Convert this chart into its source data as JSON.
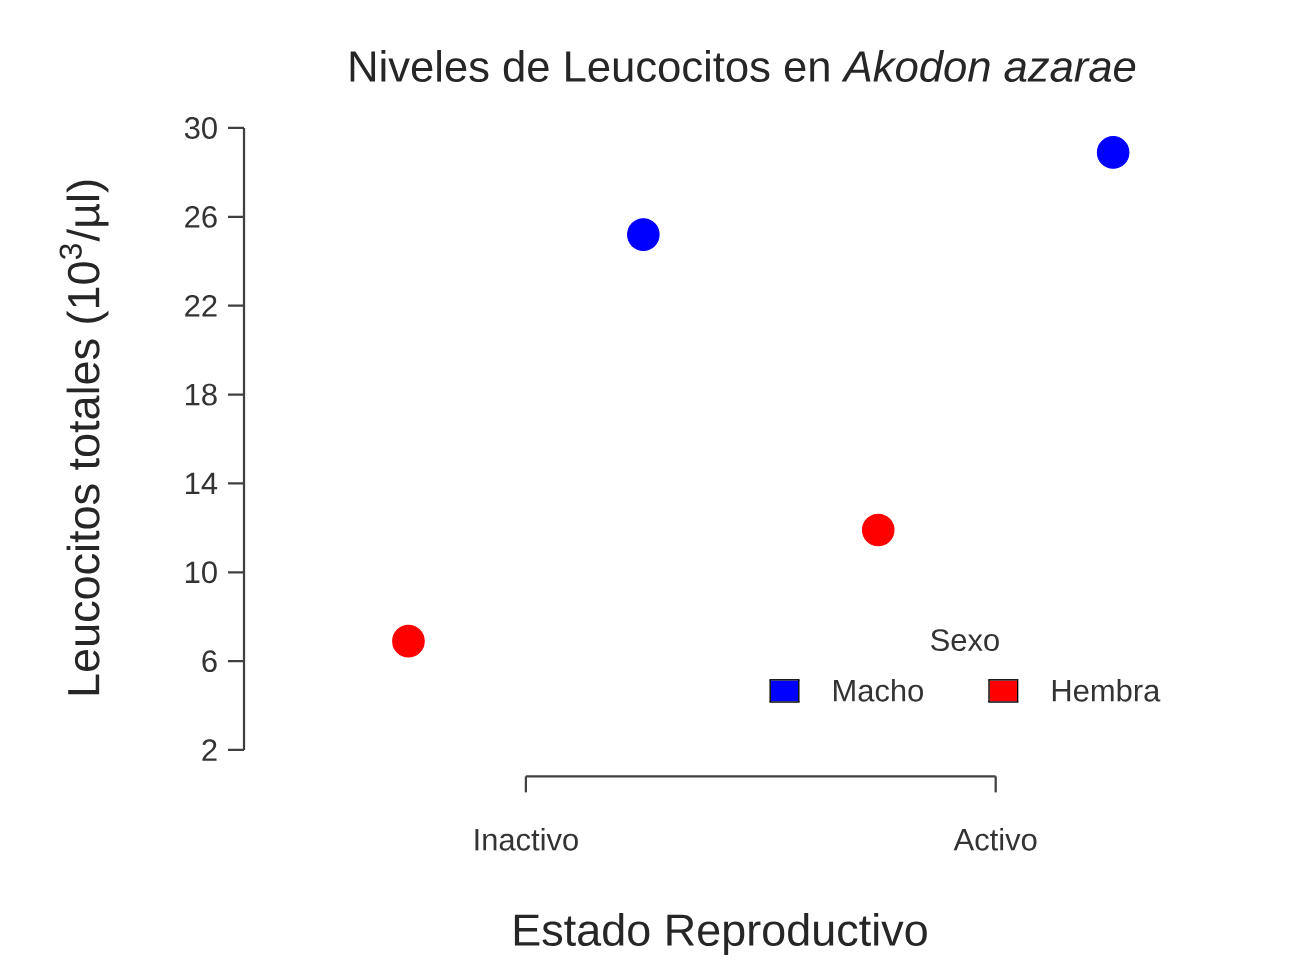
{
  "chart_data": {
    "type": "scatter",
    "title": "Niveles de Leucocitos en *Akodon azarae*",
    "xlabel": "Estado Reproductivo",
    "ylabel": "Leucocitos totales (10$^{3}$/µl)",
    "legend_title": "Sexo",
    "categories": [
      "Inactivo",
      "Activo"
    ],
    "series": [
      {
        "name": "Macho",
        "color": "#0000ff",
        "values": [
          25.2,
          28.9
        ]
      },
      {
        "name": "Hembra",
        "color": "#ff0000",
        "values": [
          6.9,
          11.9
        ]
      }
    ],
    "ylim": [
      2,
      30
    ],
    "yticks": [
      2,
      6,
      10,
      14,
      18,
      22,
      26,
      30
    ],
    "grid": false,
    "legend": "bottom right",
    "marker": "circle"
  }
}
